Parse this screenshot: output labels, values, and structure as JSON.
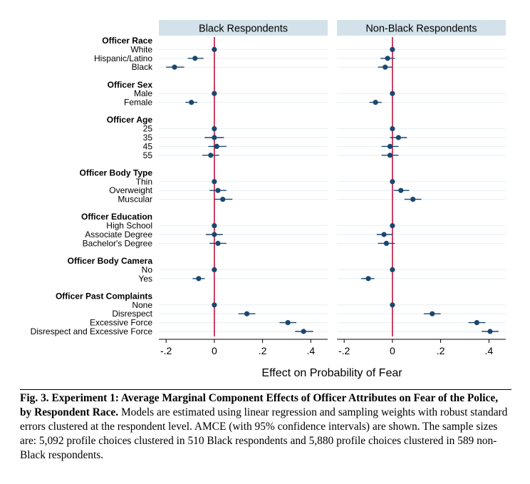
{
  "chart_data": {
    "type": "scatter",
    "xlabel": "Effect on Probability of Fear",
    "xlim": [
      -0.23,
      0.47
    ],
    "xticks": [
      -0.2,
      0,
      0.2,
      0.4
    ],
    "xtick_labels": [
      "-.2",
      "0",
      ".2",
      ".4"
    ],
    "reference_line": 0,
    "panels": [
      "Black Respondents",
      "Non-Black Respondents"
    ],
    "rows": [
      {
        "type": "group",
        "label": "Officer Race"
      },
      {
        "type": "level",
        "label": "White",
        "black": {
          "est": 0.0,
          "lo": 0.0,
          "hi": 0.0
        },
        "nonblack": {
          "est": 0.0,
          "lo": 0.0,
          "hi": 0.0
        }
      },
      {
        "type": "level",
        "label": "Hispanic/Latino",
        "black": {
          "est": -0.08,
          "lo": -0.11,
          "hi": -0.045
        },
        "nonblack": {
          "est": -0.02,
          "lo": -0.05,
          "hi": 0.01
        }
      },
      {
        "type": "level",
        "label": "Black",
        "black": {
          "est": -0.165,
          "lo": -0.2,
          "hi": -0.125
        },
        "nonblack": {
          "est": -0.03,
          "lo": -0.06,
          "hi": 0.0
        }
      },
      {
        "type": "gap"
      },
      {
        "type": "group",
        "label": "Officer Sex"
      },
      {
        "type": "level",
        "label": "Male",
        "black": {
          "est": 0.0,
          "lo": 0.0,
          "hi": 0.0
        },
        "nonblack": {
          "est": 0.0,
          "lo": 0.0,
          "hi": 0.0
        }
      },
      {
        "type": "level",
        "label": "Female",
        "black": {
          "est": -0.095,
          "lo": -0.12,
          "hi": -0.07
        },
        "nonblack": {
          "est": -0.07,
          "lo": -0.095,
          "hi": -0.045
        }
      },
      {
        "type": "gap"
      },
      {
        "type": "group",
        "label": "Officer Age"
      },
      {
        "type": "level",
        "label": "25",
        "black": {
          "est": 0.0,
          "lo": 0.0,
          "hi": 0.0
        },
        "nonblack": {
          "est": 0.0,
          "lo": 0.0,
          "hi": 0.0
        }
      },
      {
        "type": "level",
        "label": "35",
        "black": {
          "est": 0.0,
          "lo": -0.04,
          "hi": 0.04
        },
        "nonblack": {
          "est": 0.025,
          "lo": -0.01,
          "hi": 0.06
        }
      },
      {
        "type": "level",
        "label": "45",
        "black": {
          "est": 0.01,
          "lo": -0.025,
          "hi": 0.05
        },
        "nonblack": {
          "est": -0.01,
          "lo": -0.045,
          "hi": 0.025
        }
      },
      {
        "type": "level",
        "label": "55",
        "black": {
          "est": -0.015,
          "lo": -0.05,
          "hi": 0.02
        },
        "nonblack": {
          "est": -0.01,
          "lo": -0.045,
          "hi": 0.025
        }
      },
      {
        "type": "gap"
      },
      {
        "type": "group",
        "label": "Officer Body Type"
      },
      {
        "type": "level",
        "label": "Thin",
        "black": {
          "est": 0.0,
          "lo": 0.0,
          "hi": 0.0
        },
        "nonblack": {
          "est": 0.0,
          "lo": 0.0,
          "hi": 0.0
        }
      },
      {
        "type": "level",
        "label": "Overweight",
        "black": {
          "est": 0.015,
          "lo": -0.02,
          "hi": 0.05
        },
        "nonblack": {
          "est": 0.035,
          "lo": 0.005,
          "hi": 0.07
        }
      },
      {
        "type": "level",
        "label": "Muscular",
        "black": {
          "est": 0.035,
          "lo": 0.0,
          "hi": 0.075
        },
        "nonblack": {
          "est": 0.085,
          "lo": 0.05,
          "hi": 0.12
        }
      },
      {
        "type": "gap"
      },
      {
        "type": "group",
        "label": "Officer Education"
      },
      {
        "type": "level",
        "label": "High School",
        "black": {
          "est": 0.0,
          "lo": 0.0,
          "hi": 0.0
        },
        "nonblack": {
          "est": 0.0,
          "lo": 0.0,
          "hi": 0.0
        }
      },
      {
        "type": "level",
        "label": "Associate Degree",
        "black": {
          "est": 0.0,
          "lo": -0.035,
          "hi": 0.035
        },
        "nonblack": {
          "est": -0.035,
          "lo": -0.065,
          "hi": 0.0
        }
      },
      {
        "type": "level",
        "label": "Bachelor's Degree",
        "black": {
          "est": 0.015,
          "lo": -0.02,
          "hi": 0.05
        },
        "nonblack": {
          "est": -0.025,
          "lo": -0.06,
          "hi": 0.01
        }
      },
      {
        "type": "gap"
      },
      {
        "type": "group",
        "label": "Officer Body Camera"
      },
      {
        "type": "level",
        "label": "No",
        "black": {
          "est": 0.0,
          "lo": 0.0,
          "hi": 0.0
        },
        "nonblack": {
          "est": 0.0,
          "lo": 0.0,
          "hi": 0.0
        }
      },
      {
        "type": "level",
        "label": "Yes",
        "black": {
          "est": -0.065,
          "lo": -0.09,
          "hi": -0.04
        },
        "nonblack": {
          "est": -0.1,
          "lo": -0.13,
          "hi": -0.075
        }
      },
      {
        "type": "gap"
      },
      {
        "type": "group",
        "label": "Officer Past Complaints"
      },
      {
        "type": "level",
        "label": "None",
        "black": {
          "est": 0.0,
          "lo": 0.0,
          "hi": 0.0
        },
        "nonblack": {
          "est": 0.0,
          "lo": 0.0,
          "hi": 0.0
        }
      },
      {
        "type": "level",
        "label": "Disrespect",
        "black": {
          "est": 0.135,
          "lo": 0.1,
          "hi": 0.17
        },
        "nonblack": {
          "est": 0.165,
          "lo": 0.13,
          "hi": 0.2
        }
      },
      {
        "type": "level",
        "label": "Excessive Force",
        "black": {
          "est": 0.305,
          "lo": 0.27,
          "hi": 0.34
        },
        "nonblack": {
          "est": 0.35,
          "lo": 0.315,
          "hi": 0.385
        }
      },
      {
        "type": "level",
        "label": "Disrespect and Excessive Force",
        "black": {
          "est": 0.37,
          "lo": 0.335,
          "hi": 0.41
        },
        "nonblack": {
          "est": 0.405,
          "lo": 0.37,
          "hi": 0.44
        }
      }
    ]
  },
  "caption": {
    "lead": "Fig. 3. Experiment 1: Average Marginal Component Effects of Officer Attributes on Fear of the Police, by Respondent Race.",
    "body": " Models are estimated using linear regression and sampling weights with robust standard errors clustered at the respondent level. AMCE (with 95% confidence intervals) are shown. The sample sizes are: 5,092 profile choices clustered in 510 Black respondents and 5,880 profile choices clustered in 589 non-Black respondents."
  },
  "colors": {
    "marker": "#1a476f",
    "reference_line": "#c0143c",
    "panel_header": "#d3e2ea",
    "gridline": "#e6eef2"
  }
}
